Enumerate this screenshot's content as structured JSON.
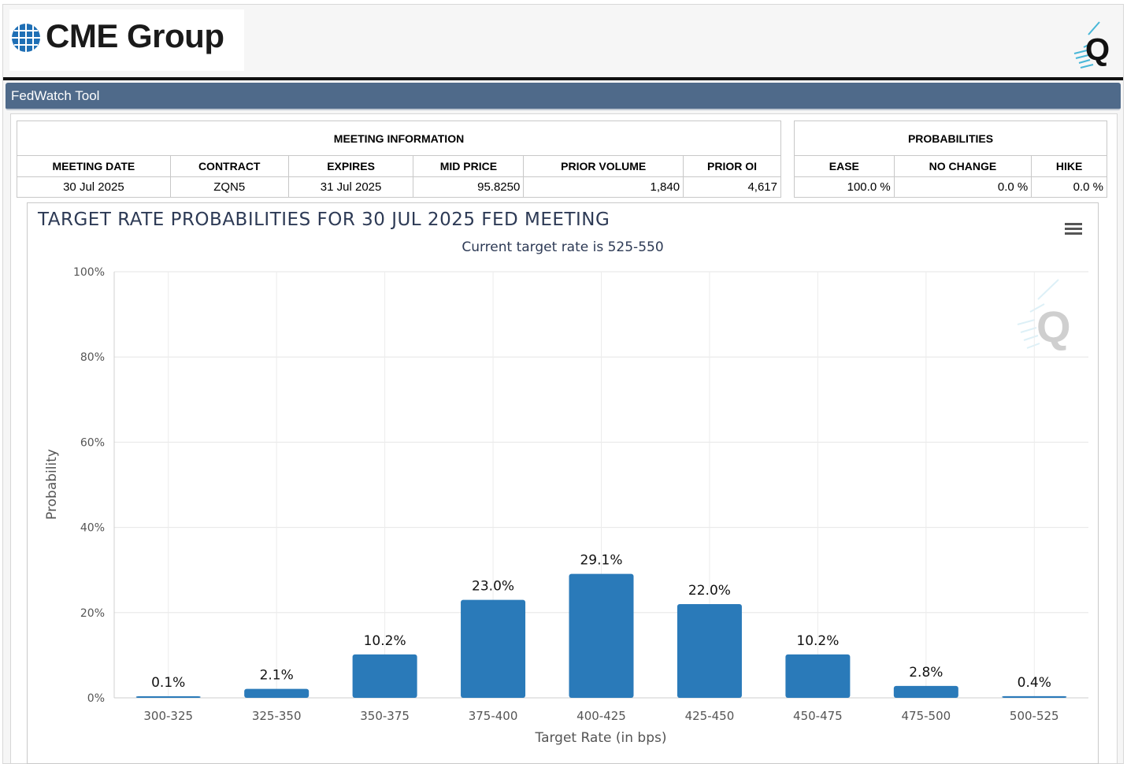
{
  "header": {
    "brand": "CME Group",
    "app_title": "FedWatch Tool"
  },
  "meeting_info": {
    "title": "MEETING INFORMATION",
    "columns": [
      "MEETING DATE",
      "CONTRACT",
      "EXPIRES",
      "MID PRICE",
      "PRIOR VOLUME",
      "PRIOR OI"
    ],
    "row": [
      "30 Jul 2025",
      "ZQN5",
      "31 Jul 2025",
      "95.8250",
      "1,840",
      "4,617"
    ]
  },
  "probabilities": {
    "title": "PROBABILITIES",
    "columns": [
      "EASE",
      "NO CHANGE",
      "HIKE"
    ],
    "row": [
      "100.0 %",
      "0.0 %",
      "0.0 %"
    ]
  },
  "chart_data": {
    "type": "bar",
    "title": "TARGET RATE PROBABILITIES FOR 30 JUL 2025 FED MEETING",
    "subtitle": "Current target rate is 525-550",
    "xlabel": "Target Rate (in bps)",
    "ylabel": "Probability",
    "ylim": [
      0,
      100
    ],
    "yticks": [
      "0%",
      "20%",
      "40%",
      "60%",
      "80%",
      "100%"
    ],
    "categories": [
      "300-325",
      "325-350",
      "350-375",
      "375-400",
      "400-425",
      "425-450",
      "450-475",
      "475-500",
      "500-525"
    ],
    "values": [
      0.1,
      2.1,
      10.2,
      23.0,
      29.1,
      22.0,
      10.2,
      2.8,
      0.4
    ],
    "labels": [
      "0.1%",
      "2.1%",
      "10.2%",
      "23.0%",
      "29.1%",
      "22.0%",
      "10.2%",
      "2.8%",
      "0.4%"
    ],
    "bar_color": "#2a7ab9",
    "grid": true
  }
}
